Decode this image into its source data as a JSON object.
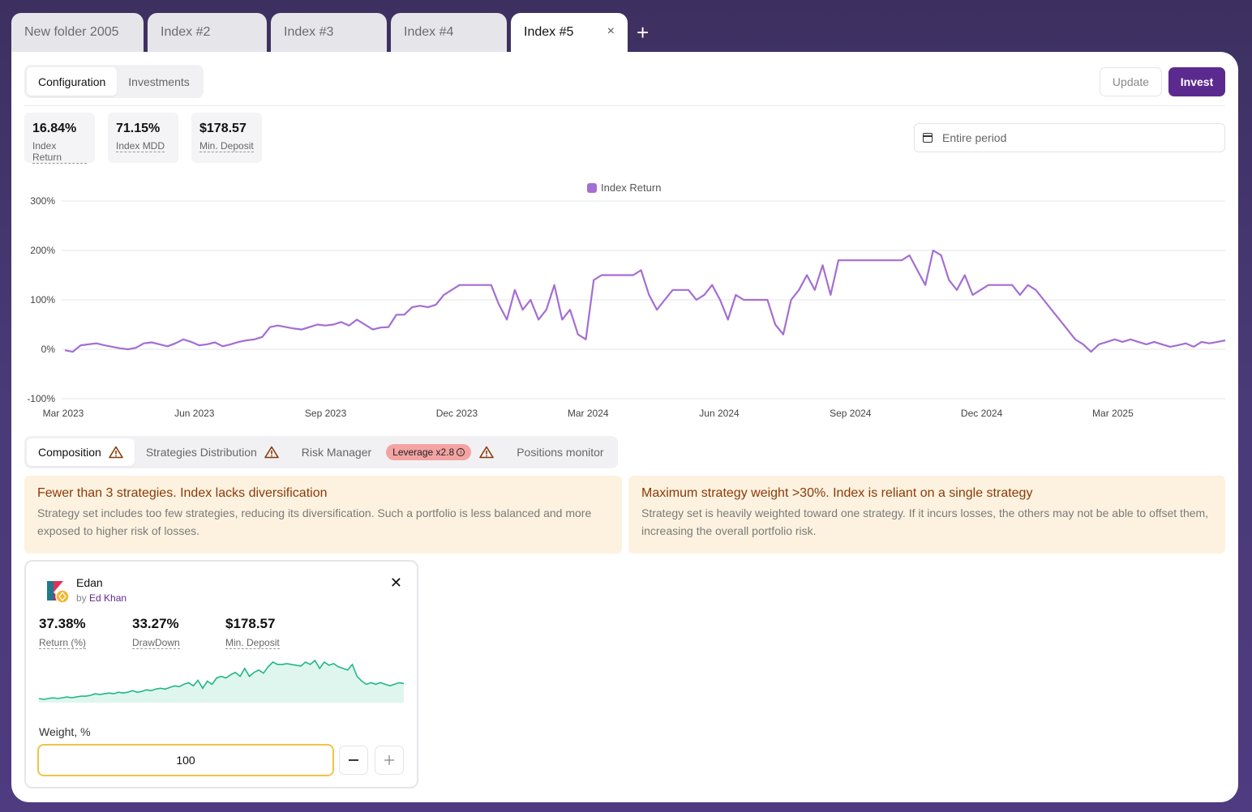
{
  "tabs": [
    {
      "label": "New folder 2005"
    },
    {
      "label": "Index #2"
    },
    {
      "label": "Index #3"
    },
    {
      "label": "Index #4"
    },
    {
      "label": "Index #5",
      "active": true
    }
  ],
  "tab_close_glyph": "×",
  "tab_add_glyph": "+",
  "top_tabs": {
    "configuration": "Configuration",
    "investments": "Investments"
  },
  "actions": {
    "update": "Update",
    "invest": "Invest"
  },
  "stats": [
    {
      "value": "16.84%",
      "label": "Index Return"
    },
    {
      "value": "71.15%",
      "label": "Index MDD"
    },
    {
      "value": "$178.57",
      "label": "Min. Deposit"
    }
  ],
  "period": {
    "label": "Entire period"
  },
  "chart_data": {
    "type": "line",
    "legend": "Index Return",
    "color": "#a46ed3",
    "y_ticks": [
      "300%",
      "200%",
      "100%",
      "0%",
      "-100%"
    ],
    "ylim": [
      -100,
      300
    ],
    "x_ticks": [
      "Mar 2023",
      "Jun 2023",
      "Sep 2023",
      "Dec 2023",
      "Mar 2024",
      "Jun 2024",
      "Sep 2024",
      "Dec 2024",
      "Mar 2025"
    ],
    "series": [
      {
        "values": [
          -2,
          -5,
          8,
          10,
          12,
          8,
          5,
          2,
          0,
          3,
          12,
          14,
          10,
          6,
          12,
          20,
          15,
          8,
          10,
          14,
          6,
          10,
          15,
          18,
          20,
          25,
          45,
          48,
          45,
          42,
          40,
          45,
          50,
          48,
          50,
          55,
          48,
          60,
          50,
          40,
          44,
          45,
          70,
          70,
          85,
          88,
          85,
          90,
          110,
          120,
          130,
          130,
          130,
          130,
          130,
          90,
          60,
          120,
          80,
          100,
          60,
          80,
          130,
          60,
          80,
          30,
          20,
          140,
          150,
          150,
          150,
          150,
          150,
          160,
          110,
          80,
          100,
          120,
          120,
          120,
          100,
          110,
          130,
          100,
          60,
          110,
          100,
          100,
          100,
          100,
          50,
          30,
          100,
          120,
          150,
          120,
          170,
          110,
          180,
          180,
          180,
          180,
          180,
          180,
          180,
          180,
          180,
          190,
          160,
          130,
          200,
          190,
          140,
          120,
          150,
          110,
          120,
          130,
          130,
          130,
          130,
          110,
          130,
          120,
          100,
          80,
          60,
          40,
          20,
          10,
          -5,
          10,
          15,
          20,
          15,
          20,
          15,
          10,
          15,
          10,
          5,
          8,
          12,
          5,
          15,
          12,
          15,
          18
        ]
      }
    ]
  },
  "bottom_tabs": {
    "composition": "Composition",
    "distribution": "Strategies Distribution",
    "risk": "Risk Manager",
    "leverage": "Leverage x2.8",
    "monitor": "Positions monitor"
  },
  "alerts": [
    {
      "title": "Fewer than 3 strategies. Index lacks diversification",
      "text": "Strategy set includes too few strategies, reducing its diversification. Such a portfolio is less balanced and more exposed to higher risk of losses."
    },
    {
      "title": "Maximum strategy weight >30%. Index is reliant on a single strategy",
      "text": "Strategy set is heavily weighted toward one strategy. If it incurs losses, the others may not be able to offset them, increasing the overall portfolio risk."
    }
  ],
  "strategy": {
    "name": "Edan",
    "by_prefix": "by",
    "author": "Ed Khan",
    "stats": [
      {
        "value": "37.38%",
        "label": "Return (%)"
      },
      {
        "value": "33.27%",
        "label": "DrawDown"
      },
      {
        "value": "$178.57",
        "label": "Min. Deposit"
      }
    ],
    "weight_label": "Weight, %",
    "weight_value": "100",
    "sparkline_color": "#1fb886",
    "sparkline": [
      2,
      1,
      2,
      3,
      2,
      3,
      4,
      3,
      4,
      5,
      5,
      6,
      8,
      7,
      8,
      9,
      8,
      10,
      9,
      10,
      12,
      10,
      11,
      13,
      12,
      14,
      15,
      14,
      16,
      18,
      17,
      20,
      22,
      18,
      25,
      15,
      24,
      20,
      28,
      30,
      28,
      32,
      35,
      30,
      40,
      30,
      35,
      38,
      34,
      42,
      48,
      45,
      45,
      46,
      45,
      44,
      43,
      48,
      45,
      50,
      40,
      48,
      44,
      46,
      42,
      40,
      38,
      45,
      30,
      24,
      20,
      22,
      20,
      22,
      20,
      18,
      20,
      22,
      21
    ]
  },
  "colors": {
    "accent": "#5b2a8e",
    "warning": "#8a3a0a"
  }
}
